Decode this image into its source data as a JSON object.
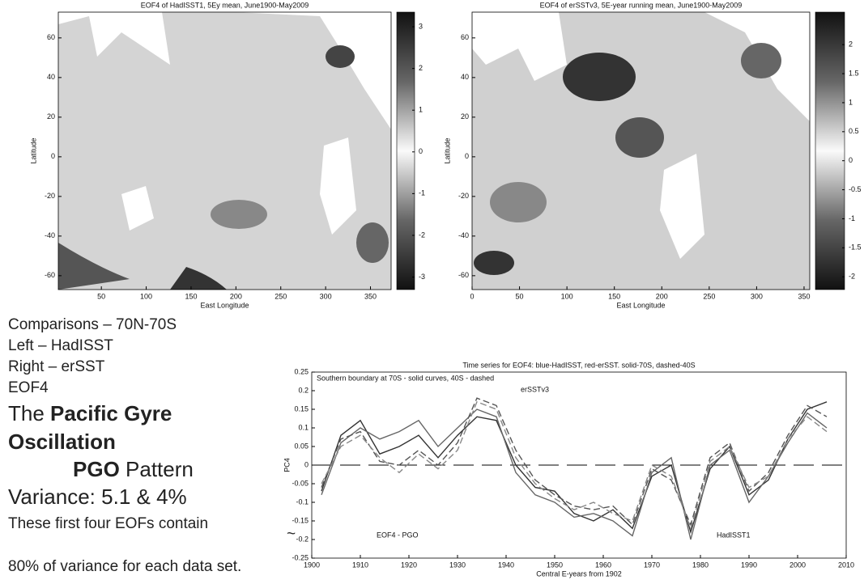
{
  "chart_data": [
    {
      "type": "contour-map",
      "title": "EOF4 of HadISST1, 5Ey mean, June1900-May2009",
      "xlabel": "East Longitude",
      "ylabel": "Latitude",
      "xlim": [
        2,
        373
      ],
      "xticks": [
        50,
        100,
        150,
        200,
        250,
        300,
        350
      ],
      "ylim": [
        -67,
        73
      ],
      "yticks": [
        -60,
        -40,
        -20,
        0,
        20,
        40,
        60
      ],
      "clim": [
        -3.3,
        3.35
      ],
      "cticks": [
        -3,
        -2,
        -1,
        0,
        1,
        2,
        3
      ]
    },
    {
      "type": "contour-map",
      "title": "EOF4 of erSSTv3, 5E-year running mean, June1900-May2009",
      "xlabel": "East Longitude",
      "ylabel": "Latitude",
      "xlim": [
        0,
        356
      ],
      "xticks": [
        0,
        50,
        100,
        150,
        200,
        250,
        300,
        350
      ],
      "ylim": [
        -67,
        73
      ],
      "yticks": [
        -60,
        -40,
        -20,
        0,
        20,
        40,
        60
      ],
      "clim": [
        -2.22,
        2.56
      ],
      "cticks": [
        -2,
        -1.5,
        -1,
        -0.5,
        0,
        0.5,
        1,
        1.5,
        2
      ]
    },
    {
      "type": "line",
      "title": "Time series for EOF4: blue-HadISST, red-erSST. solid-70S, dashed-40S",
      "xlabel": "Central E-years from 1902",
      "ylabel": "PC4",
      "annotations": [
        "Southern boundary at 70S - solid curves, 40S - dashed",
        "erSSTv3",
        "EOF4 - PGO",
        "HadISST1"
      ],
      "xlim": [
        1900,
        2010
      ],
      "xticks": [
        1900,
        1910,
        1920,
        1930,
        1940,
        1950,
        1960,
        1970,
        1980,
        1990,
        2000,
        2010
      ],
      "ylim": [
        -0.25,
        0.25
      ],
      "yticks": [
        -0.25,
        -0.2,
        -0.15,
        -0.1,
        -0.05,
        0,
        0.05,
        0.1,
        0.15,
        0.2,
        0.25
      ],
      "x": [
        1902,
        1906,
        1910,
        1914,
        1918,
        1922,
        1926,
        1930,
        1934,
        1938,
        1942,
        1946,
        1950,
        1954,
        1958,
        1962,
        1966,
        1970,
        1974,
        1978,
        1982,
        1986,
        1990,
        1994,
        1998,
        2002,
        2006
      ],
      "series": [
        {
          "color": "#333333",
          "dashed": false,
          "values": [
            -0.07,
            0.08,
            0.12,
            0.03,
            0.05,
            0.08,
            0.02,
            0.08,
            0.13,
            0.12,
            0.0,
            -0.06,
            -0.07,
            -0.13,
            -0.15,
            -0.12,
            -0.17,
            -0.03,
            0.0,
            -0.18,
            -0.01,
            0.05,
            -0.08,
            -0.04,
            0.07,
            0.15,
            0.17
          ]
        },
        {
          "color": "#666666",
          "dashed": false,
          "values": [
            -0.08,
            0.06,
            0.1,
            0.07,
            0.09,
            0.12,
            0.05,
            0.1,
            0.15,
            0.13,
            -0.02,
            -0.08,
            -0.1,
            -0.14,
            -0.13,
            -0.15,
            -0.19,
            -0.02,
            0.02,
            -0.2,
            0.0,
            0.04,
            -0.1,
            -0.03,
            0.06,
            0.14,
            0.1
          ]
        },
        {
          "color": "#555555",
          "dashed": true,
          "values": [
            -0.06,
            0.07,
            0.09,
            0.01,
            0.0,
            0.04,
            0.0,
            0.06,
            0.18,
            0.16,
            0.04,
            -0.04,
            -0.08,
            -0.11,
            -0.12,
            -0.11,
            -0.16,
            -0.01,
            -0.04,
            -0.16,
            0.02,
            0.06,
            -0.07,
            -0.02,
            0.08,
            0.16,
            0.13
          ]
        },
        {
          "color": "#888888",
          "dashed": true,
          "values": [
            -0.05,
            0.05,
            0.08,
            0.02,
            -0.02,
            0.03,
            -0.01,
            0.04,
            0.17,
            0.15,
            0.02,
            -0.05,
            -0.09,
            -0.12,
            -0.1,
            -0.13,
            -0.15,
            0.0,
            -0.03,
            -0.17,
            0.01,
            0.05,
            -0.06,
            -0.03,
            0.07,
            0.13,
            0.09
          ]
        }
      ]
    }
  ],
  "slide_text": [
    "Comparisons – 70N-70S",
    "Left – HadISST",
    "Right – erSST",
    "EOF4",
    [
      "The",
      "Pacific Gyre"
    ],
    "Oscillation",
    [
      "PGO",
      "Pattern"
    ],
    "Variance: 5.1 &  4%",
    "These first four EOFs contain",
    "~",
    "80% of variance for each data set."
  ]
}
